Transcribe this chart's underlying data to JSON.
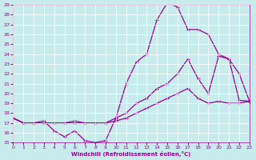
{
  "xlabel": "Windchill (Refroidissement éolien,°C)",
  "bg_color": "#c8ecec",
  "line_color": "#990099",
  "grid_color": "#ffffff",
  "ylim": [
    15,
    29
  ],
  "xlim": [
    0,
    23
  ],
  "yticks": [
    15,
    16,
    17,
    18,
    19,
    20,
    21,
    22,
    23,
    24,
    25,
    26,
    27,
    28,
    29
  ],
  "xticks": [
    0,
    1,
    2,
    3,
    4,
    5,
    6,
    7,
    8,
    9,
    10,
    11,
    12,
    13,
    14,
    15,
    16,
    17,
    18,
    19,
    20,
    21,
    22,
    23
  ],
  "curve1_x": [
    0,
    1,
    2,
    3,
    4,
    5,
    6,
    7,
    8,
    9,
    10,
    11,
    12,
    13,
    14,
    15,
    16,
    17,
    18,
    19,
    20,
    21,
    22,
    23
  ],
  "curve1_y": [
    17.5,
    17.0,
    17.0,
    17.2,
    16.2,
    15.6,
    16.2,
    15.2,
    15.0,
    15.2,
    17.5,
    21.0,
    23.2,
    24.0,
    27.5,
    29.2,
    28.8,
    26.5,
    26.5,
    26.0,
    24.0,
    23.5,
    19.3,
    19.2
  ],
  "curve2_x": [
    0,
    1,
    2,
    3,
    4,
    5,
    6,
    7,
    8,
    9,
    10,
    11,
    12,
    13,
    14,
    15,
    16,
    17,
    18,
    19,
    20,
    21,
    22,
    23
  ],
  "curve2_y": [
    17.5,
    17.0,
    17.0,
    17.0,
    17.0,
    17.0,
    17.2,
    17.0,
    17.0,
    17.0,
    17.5,
    18.0,
    19.0,
    19.5,
    20.5,
    21.0,
    22.0,
    23.5,
    21.5,
    20.0,
    23.8,
    23.5,
    22.0,
    19.2
  ],
  "curve3_x": [
    0,
    1,
    2,
    3,
    4,
    5,
    6,
    7,
    8,
    9,
    10,
    11,
    12,
    13,
    14,
    15,
    16,
    17,
    18,
    19,
    20,
    21,
    22,
    23
  ],
  "curve3_y": [
    17.5,
    17.0,
    17.0,
    17.0,
    17.0,
    17.0,
    17.0,
    17.0,
    17.0,
    17.0,
    17.2,
    17.5,
    18.0,
    18.5,
    19.0,
    19.5,
    20.0,
    20.5,
    19.5,
    19.0,
    19.2,
    19.0,
    19.0,
    19.2
  ]
}
